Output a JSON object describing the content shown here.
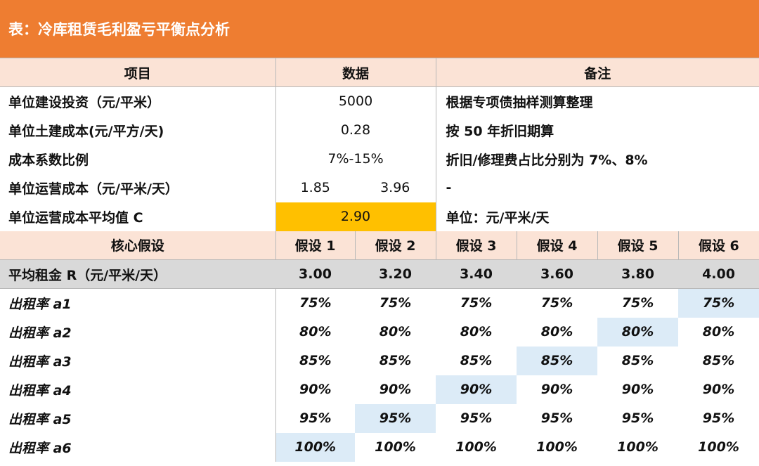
{
  "title": "表：冷库租赁毛利盈亏平衡点分析",
  "header": {
    "item": "项目",
    "data": "数据",
    "note": "备注"
  },
  "info_rows": [
    {
      "label": "单位建设投资（元/平米）",
      "value": "5000",
      "note": "根据专项债抽样测算整理"
    },
    {
      "label": "单位土建成本(元/平方/天)",
      "value": "0.28",
      "note": "按 50 年折旧期算"
    },
    {
      "label": "成本系数比例",
      "value": "7%-15%",
      "note": "折旧/修理费占比分别为 7%、8%"
    },
    {
      "label": "单位运营成本（元/平米/天）",
      "value_low": "1.85",
      "value_high": "3.96",
      "note": "-"
    },
    {
      "label": "单位运营成本平均值 C",
      "value": "2.90",
      "note": "单位：元/平米/天"
    }
  ],
  "assumption_header": {
    "label": "核心假设",
    "cols": [
      "假设 1",
      "假设 2",
      "假设 3",
      "假设 4",
      "假设 5",
      "假设 6"
    ]
  },
  "rent_row": {
    "label": "平均租金 R（元/平米/天）",
    "values": [
      "3.00",
      "3.20",
      "3.40",
      "3.60",
      "3.80",
      "4.00"
    ]
  },
  "occupancy_rows": [
    {
      "label": "出租率 a1",
      "values": [
        "75%",
        "75%",
        "75%",
        "75%",
        "75%",
        "75%"
      ],
      "highlight_col": 6
    },
    {
      "label": "出租率 a2",
      "values": [
        "80%",
        "80%",
        "80%",
        "80%",
        "80%",
        "80%"
      ],
      "highlight_col": 5
    },
    {
      "label": "出租率 a3",
      "values": [
        "85%",
        "85%",
        "85%",
        "85%",
        "85%",
        "85%"
      ],
      "highlight_col": 4
    },
    {
      "label": "出租率 a4",
      "values": [
        "90%",
        "90%",
        "90%",
        "90%",
        "90%",
        "90%"
      ],
      "highlight_col": 3
    },
    {
      "label": "出租率 a5",
      "values": [
        "95%",
        "95%",
        "95%",
        "95%",
        "95%",
        "95%"
      ],
      "highlight_col": 2
    },
    {
      "label": "出租率 a6",
      "values": [
        "100%",
        "100%",
        "100%",
        "100%",
        "100%",
        "100%"
      ],
      "highlight_col": 1
    }
  ],
  "colors": {
    "title_bg": "#ee7d31",
    "header_bg": "#fbe3d6",
    "highlight_yellow": "#ffc000",
    "rent_row_bg": "#d9d9d9",
    "highlight_blue": "#dcebf7"
  }
}
